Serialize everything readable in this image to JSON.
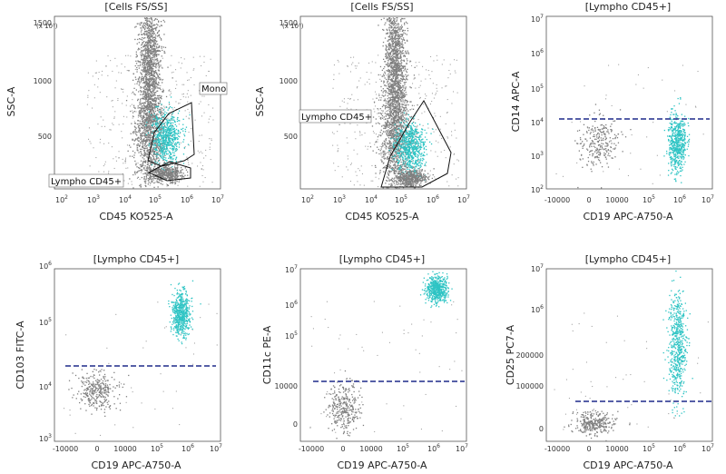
{
  "chart_data": [
    {
      "type": "scatter",
      "title": "[Cells FS/SS]",
      "xlabel": "CD45 KO525-A",
      "ylabel": "SSC-A",
      "y_units": "(x 10³)",
      "x_scale": "log",
      "x_ticks": [
        {
          "base": "10",
          "exp": "2"
        },
        {
          "base": "10",
          "exp": "3"
        },
        {
          "base": "10",
          "exp": "4"
        },
        {
          "base": "10",
          "exp": "5"
        },
        {
          "base": "10",
          "exp": "6"
        },
        {
          "base": "10",
          "exp": "7"
        }
      ],
      "y_ticks": [
        "1500",
        "1000",
        "500"
      ],
      "gates": [
        {
          "label": "Mono"
        },
        {
          "label": "Lympho CD45+"
        }
      ],
      "threshold": null
    },
    {
      "type": "scatter",
      "title": "[Cells FS/SS]",
      "xlabel": "CD45 KO525-A",
      "ylabel": "SSC-A",
      "y_units": "(x 10³)",
      "x_scale": "log",
      "x_ticks": [
        {
          "base": "10",
          "exp": "2"
        },
        {
          "base": "10",
          "exp": "3"
        },
        {
          "base": "10",
          "exp": "4"
        },
        {
          "base": "10",
          "exp": "5"
        },
        {
          "base": "10",
          "exp": "6"
        },
        {
          "base": "10",
          "exp": "7"
        }
      ],
      "y_ticks": [
        "1500",
        "1000",
        "500"
      ],
      "gates": [
        {
          "label": "Lympho CD45+"
        }
      ],
      "threshold": null
    },
    {
      "type": "scatter",
      "title": "[Lympho CD45+]",
      "xlabel": "CD19 APC-A750-A",
      "ylabel": "CD14 APC-A",
      "x_ticks": [
        {
          "base": "-10000",
          "exp": ""
        },
        {
          "base": "0",
          "exp": ""
        },
        {
          "base": "10000",
          "exp": ""
        },
        {
          "base": "10",
          "exp": "5"
        },
        {
          "base": "10",
          "exp": "6"
        },
        {
          "base": "10",
          "exp": "7"
        }
      ],
      "y_ticks": [
        {
          "base": "10",
          "exp": "7"
        },
        {
          "base": "10",
          "exp": "6"
        },
        {
          "base": "10",
          "exp": "5"
        },
        {
          "base": "10",
          "exp": "4"
        },
        {
          "base": "10",
          "exp": "3"
        },
        {
          "base": "10",
          "exp": "2"
        }
      ],
      "gates": [],
      "threshold": {
        "y": 10000
      }
    },
    {
      "type": "scatter",
      "title": "[Lympho CD45+]",
      "xlabel": "CD19 APC-A750-A",
      "ylabel": "CD103 FITC-A",
      "x_ticks": [
        {
          "base": "-10000",
          "exp": ""
        },
        {
          "base": "0",
          "exp": ""
        },
        {
          "base": "10000",
          "exp": ""
        },
        {
          "base": "10",
          "exp": "5"
        },
        {
          "base": "10",
          "exp": "6"
        },
        {
          "base": "10",
          "exp": "7"
        }
      ],
      "y_ticks": [
        {
          "base": "10",
          "exp": "6"
        },
        {
          "base": "10",
          "exp": "5"
        },
        {
          "base": "10",
          "exp": "4"
        },
        {
          "base": "10",
          "exp": "3"
        }
      ],
      "gates": [],
      "threshold": {
        "y": 20000
      }
    },
    {
      "type": "scatter",
      "title": "[Lympho CD45+]",
      "xlabel": "CD19 APC-A750-A",
      "ylabel": "CD11c PE-A",
      "x_ticks": [
        {
          "base": "-10000",
          "exp": ""
        },
        {
          "base": "0",
          "exp": ""
        },
        {
          "base": "10000",
          "exp": ""
        },
        {
          "base": "10",
          "exp": "5"
        },
        {
          "base": "10",
          "exp": "6"
        },
        {
          "base": "10",
          "exp": "7"
        }
      ],
      "y_ticks": [
        {
          "base": "10",
          "exp": "7"
        },
        {
          "base": "10",
          "exp": "6"
        },
        {
          "base": "10",
          "exp": "5"
        },
        {
          "base": "10000",
          "exp": ""
        },
        {
          "base": "0",
          "exp": ""
        }
      ],
      "gates": [],
      "threshold": {
        "y": 13000
      }
    },
    {
      "type": "scatter",
      "title": "[Lympho CD45+]",
      "xlabel": "CD19 APC-A750-A",
      "ylabel": "CD25 PC7-A",
      "x_ticks": [
        {
          "base": "-10000",
          "exp": ""
        },
        {
          "base": "0",
          "exp": ""
        },
        {
          "base": "10000",
          "exp": ""
        },
        {
          "base": "10",
          "exp": "5"
        },
        {
          "base": "10",
          "exp": "6"
        },
        {
          "base": "10",
          "exp": "7"
        }
      ],
      "y_ticks": [
        {
          "base": "10",
          "exp": "7"
        },
        {
          "base": "10",
          "exp": "6"
        },
        {
          "base": "200000",
          "exp": ""
        },
        {
          "base": "100000",
          "exp": ""
        },
        {
          "base": "0",
          "exp": ""
        }
      ],
      "gates": [],
      "threshold": {
        "y": 60000
      }
    }
  ],
  "colors": {
    "background_events": "#7f7f7f",
    "gated_events": "#2ec4c4",
    "threshold": "#1f2a8a",
    "gate": "#111111"
  }
}
